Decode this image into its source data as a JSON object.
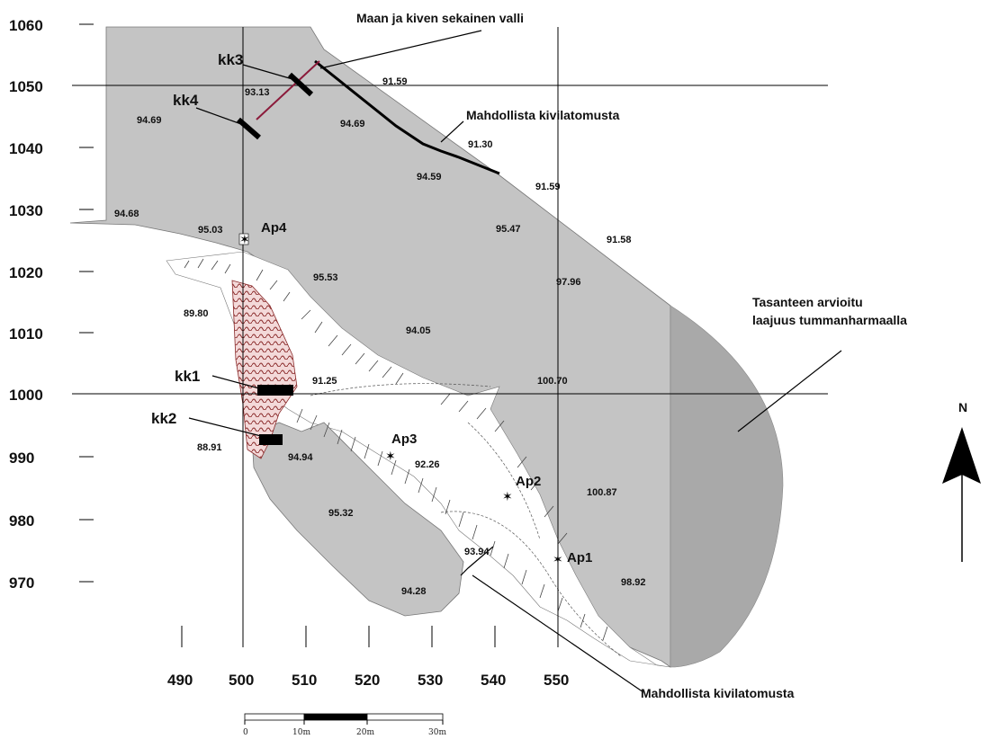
{
  "map": {
    "y_axis_labels": [
      "1060",
      "1050",
      "1040",
      "1030",
      "1020",
      "1010",
      "1000",
      "990",
      "980",
      "970"
    ],
    "x_axis_labels": [
      "490",
      "500",
      "510",
      "520",
      "530",
      "540",
      "550"
    ],
    "elevations": {
      "e1": "94.69",
      "e2": "93.13",
      "e3": "91.59",
      "e4": "94.69",
      "e5": "91.30",
      "e6": "94.59",
      "e7": "91.59",
      "e8": "94.68",
      "e9": "95.03",
      "e10": "95.47",
      "e11": "91.58",
      "e12": "95.53",
      "e13": "97.96",
      "e14": "89.80",
      "e15": "94.05",
      "e16": "91.25",
      "e17": "100.70",
      "e18": "88.91",
      "e19": "94.94",
      "e20": "92.26",
      "e21": "100.87",
      "e22": "95.32",
      "e23": "93.94",
      "e24": "98.92",
      "e25": "94.28"
    },
    "points": {
      "ap1": "Ap1",
      "ap2": "Ap2",
      "ap3": "Ap3",
      "ap4": "Ap4"
    },
    "sections": {
      "kk1": "kk1",
      "kk2": "kk2",
      "kk3": "kk3",
      "kk4": "kk4"
    },
    "annotations": {
      "wall": "Maan ja kiven sekainen valli",
      "rockfall_top": "Mahdollista kivilatomusta",
      "rockfall_bottom": "Mahdollista kivilatomusta",
      "terrace_line1": "Tasanteen arvioitu",
      "terrace_line2": "laajuus tummanharmaalla"
    },
    "north": "N",
    "scale_labels": [
      "0",
      "10m",
      "20m",
      "30m"
    ],
    "colors": {
      "area": "#c4c4c4",
      "terrace": "#a9a9a9",
      "hatch_fill": "#f3d9d9",
      "hatch_stroke": "#8a2a2a",
      "wall_line": "#8b1a3a"
    }
  }
}
